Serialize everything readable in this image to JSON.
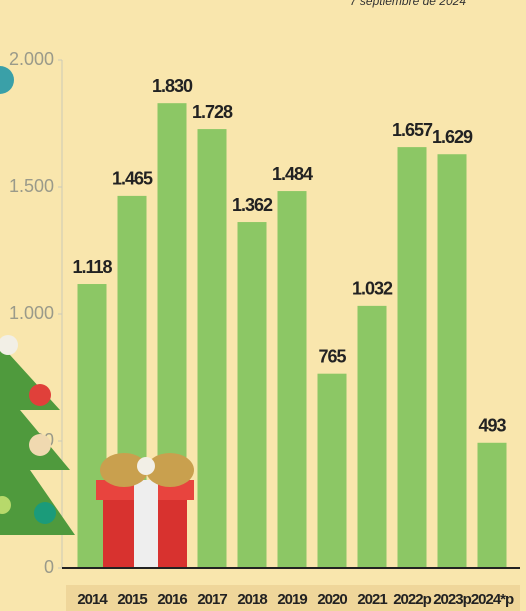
{
  "chart_data": {
    "type": "bar",
    "note": "7 septiembre de 2024",
    "categories": [
      "2014",
      "2015",
      "2016",
      "2017",
      "2018",
      "2019",
      "2020",
      "2021",
      "2022p",
      "2023p",
      "2024*p"
    ],
    "values": [
      1118,
      1465,
      1830,
      1728,
      1362,
      1484,
      765,
      1032,
      1657,
      1629,
      493
    ],
    "value_labels": [
      "1.118",
      "1.465",
      "1.830",
      "1.728",
      "1.362",
      "1.484",
      "765",
      "1.032",
      "1.657",
      "1.629",
      "493"
    ],
    "color": "#8cc765",
    "ylim": [
      0,
      2000
    ],
    "yticks": [
      0,
      {
        "value": 500,
        "label": "500"
      },
      {
        "value": 1000,
        "label": "1.000"
      },
      {
        "value": 1500,
        "label": "1.500"
      },
      {
        "value": 2000,
        "label": "2.000"
      }
    ],
    "grid": false
  }
}
